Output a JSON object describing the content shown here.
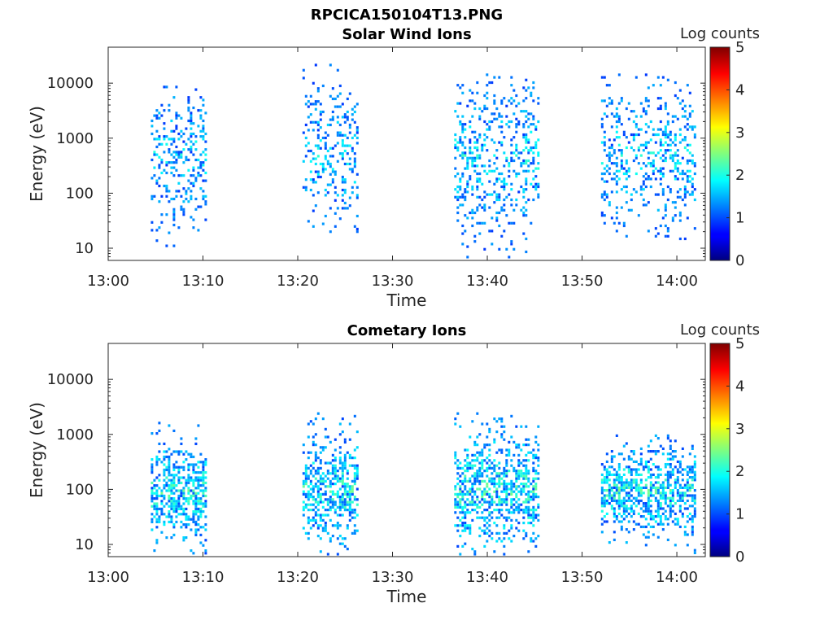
{
  "figure_title": "RPCICA150104T13.PNG",
  "colorbar": {
    "label": "Log counts",
    "ticks": [
      0,
      1,
      2,
      3,
      4,
      5
    ],
    "colormap": "jet"
  },
  "chart_data": [
    {
      "type": "heatmap",
      "title": "Solar Wind Ions",
      "xlabel": "Time",
      "ylabel": "Energy (eV)",
      "x_ticks": [
        "13:00",
        "13:10",
        "13:20",
        "13:30",
        "13:40",
        "13:50",
        "14:00"
      ],
      "y_ticks": [
        "10",
        "100",
        "1000",
        "10000"
      ],
      "y_scale": "log",
      "ylim": [
        6,
        45000
      ],
      "xlim": [
        "13:00",
        "14:03"
      ],
      "clim": [
        0,
        5
      ],
      "grid": false,
      "bursts": [
        {
          "t_start": "13:04.5",
          "t_end": "13:10.2",
          "e_min": 7,
          "e_max": 9000,
          "e_peak": 500,
          "counts_max": 1.8
        },
        {
          "t_start": "13:20.5",
          "t_end": "13:26.2",
          "e_min": 20,
          "e_max": 28000,
          "e_peak": 500,
          "counts_max": 1.8
        },
        {
          "t_start": "13:36.5",
          "t_end": "13:45.5",
          "e_min": 7,
          "e_max": 15000,
          "e_peak": 500,
          "counts_max": 1.9
        },
        {
          "t_start": "13:52.0",
          "t_end": "14:02.0",
          "e_min": 15,
          "e_max": 15000,
          "e_peak": 500,
          "counts_max": 1.9
        }
      ]
    },
    {
      "type": "heatmap",
      "title": "Cometary Ions",
      "xlabel": "Time",
      "ylabel": "Energy (eV)",
      "x_ticks": [
        "13:00",
        "13:10",
        "13:20",
        "13:30",
        "13:40",
        "13:50",
        "14:00"
      ],
      "y_ticks": [
        "10",
        "100",
        "1000",
        "10000"
      ],
      "y_scale": "log",
      "ylim": [
        6,
        45000
      ],
      "xlim": [
        "13:00",
        "14:03"
      ],
      "clim": [
        0,
        5
      ],
      "grid": false,
      "bursts": [
        {
          "t_start": "13:04.5",
          "t_end": "13:10.2",
          "e_min": 7,
          "e_max": 1700,
          "e_peak": 100,
          "counts_max": 2.2
        },
        {
          "t_start": "13:20.5",
          "t_end": "13:26.2",
          "e_min": 7,
          "e_max": 3500,
          "e_peak": 100,
          "counts_max": 2.2
        },
        {
          "t_start": "13:36.5",
          "t_end": "13:45.5",
          "e_min": 7,
          "e_max": 3500,
          "e_peak": 100,
          "counts_max": 2.3
        },
        {
          "t_start": "13:52.0",
          "t_end": "14:02.0",
          "e_min": 7,
          "e_max": 1000,
          "e_peak": 100,
          "counts_max": 2.2
        }
      ]
    }
  ]
}
